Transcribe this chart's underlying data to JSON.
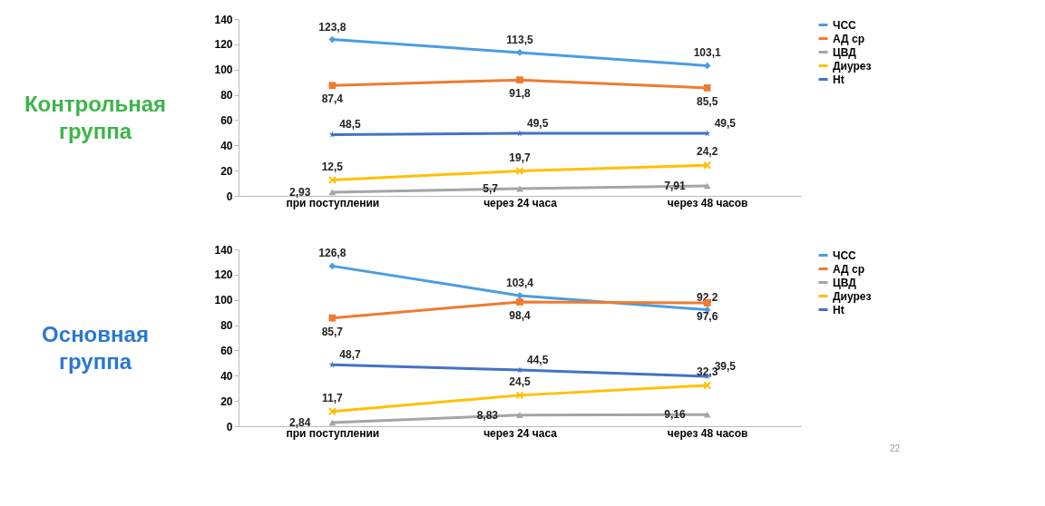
{
  "chart_data": [
    {
      "type": "line",
      "title": "Контрольная группа",
      "categories": [
        "при поступлении",
        "через 24 часа",
        "через 48 часов"
      ],
      "ylim": [
        0,
        140
      ],
      "yticks": [
        0,
        20,
        40,
        60,
        80,
        100,
        120,
        140
      ],
      "grid": false,
      "legend": "right",
      "series": [
        {
          "name": "ЧСС",
          "color": "#4a9de0",
          "marker": "diamond",
          "values": [
            123.8,
            113.5,
            103.1
          ],
          "value_labels": [
            "123,8",
            "113,5",
            "103,1"
          ]
        },
        {
          "name": "АД ср",
          "color": "#f07a30",
          "marker": "square",
          "values": [
            87.4,
            91.8,
            85.5
          ],
          "value_labels": [
            "87,4",
            "91,8",
            "85,5"
          ]
        },
        {
          "name": "ЦВД",
          "color": "#a5a5a5",
          "marker": "triangle",
          "values": [
            2.93,
            5.7,
            7.91
          ],
          "value_labels": [
            "2,93",
            "5,7",
            "7,91"
          ]
        },
        {
          "name": "Диурез",
          "color": "#ffc000",
          "marker": "cross",
          "values": [
            12.5,
            19.7,
            24.2
          ],
          "value_labels": [
            "12,5",
            "19,7",
            "24,2"
          ]
        },
        {
          "name": "Ht",
          "color": "#4472c4",
          "marker": "star",
          "values": [
            48.5,
            49.5,
            49.5
          ],
          "value_labels": [
            "48,5",
            "49,5",
            "49,5"
          ]
        }
      ]
    },
    {
      "type": "line",
      "title": "Основная группа",
      "categories": [
        "при поступлении",
        "через 24 часа",
        "через 48 часов"
      ],
      "ylim": [
        0,
        140
      ],
      "yticks": [
        0,
        20,
        40,
        60,
        80,
        100,
        120,
        140
      ],
      "grid": false,
      "legend": "right",
      "annotations": [
        "22"
      ],
      "series": [
        {
          "name": "ЧСС",
          "color": "#4a9de0",
          "marker": "diamond",
          "values": [
            126.8,
            103.4,
            92.2
          ],
          "value_labels": [
            "126,8",
            "103,4",
            "92,2"
          ]
        },
        {
          "name": "АД ср",
          "color": "#f07a30",
          "marker": "square",
          "values": [
            85.7,
            98.4,
            97.6
          ],
          "value_labels": [
            "85,7",
            "98,4",
            "97,6"
          ]
        },
        {
          "name": "ЦВД",
          "color": "#a5a5a5",
          "marker": "triangle",
          "values": [
            2.84,
            8.83,
            9.16
          ],
          "value_labels": [
            "2,84",
            "8,83",
            "9,16"
          ]
        },
        {
          "name": "Диурез",
          "color": "#ffc000",
          "marker": "cross",
          "values": [
            11.7,
            24.5,
            32.3
          ],
          "value_labels": [
            "11,7",
            "24,5",
            "32,3"
          ]
        },
        {
          "name": "Ht",
          "color": "#4472c4",
          "marker": "star",
          "values": [
            48.7,
            44.5,
            39.5
          ],
          "value_labels": [
            "48,7",
            "44,5",
            "39,5"
          ]
        }
      ]
    }
  ]
}
